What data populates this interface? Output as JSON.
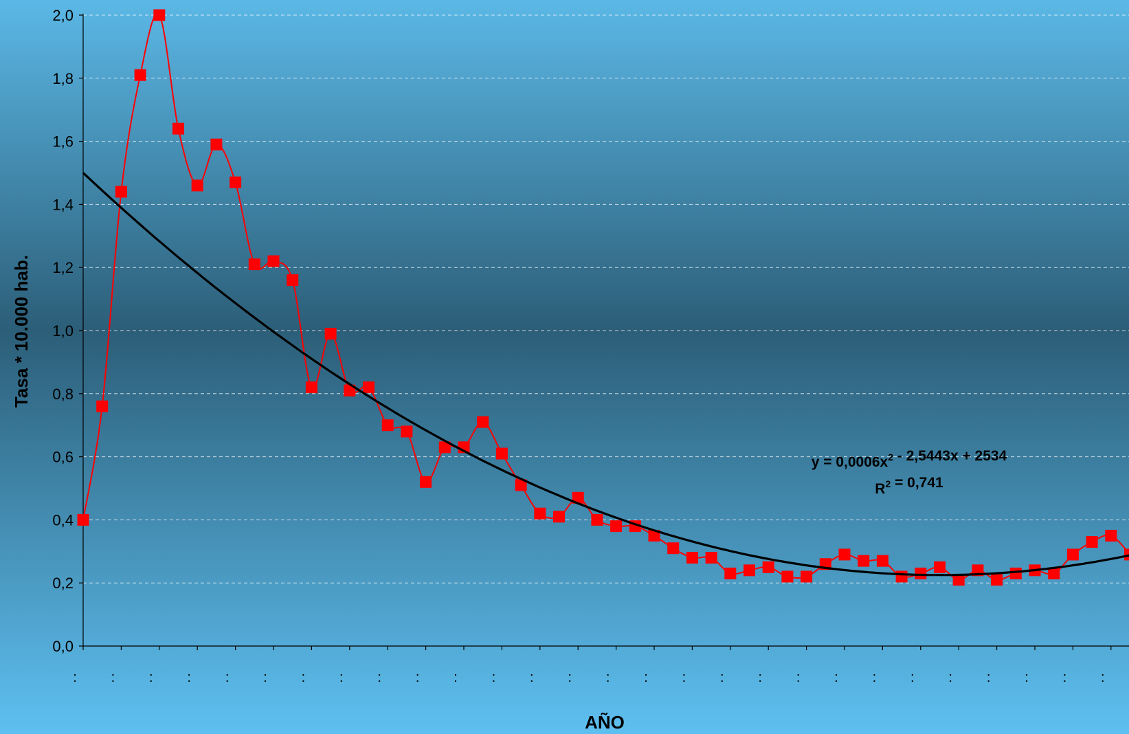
{
  "chart_data": {
    "type": "line",
    "title": "",
    "xlabel": "AÑO",
    "ylabel": "Tasa * 10.000 hab.",
    "ylim": [
      0,
      2.0
    ],
    "y_ticks": [
      "0,0",
      "0,2",
      "0,4",
      "0,6",
      "0,8",
      "1,0",
      "1,2",
      "1,4",
      "1,6",
      "1,8",
      "2,0"
    ],
    "x_tick_labels": [
      ":",
      ":",
      ":",
      ":",
      ":",
      ":",
      ":",
      ":",
      ":",
      ":",
      ":",
      ":",
      ":",
      ":",
      ":",
      ":",
      ":",
      ":",
      ":",
      ":",
      ":",
      ":",
      ":",
      ":",
      ":",
      ":",
      ":",
      ":"
    ],
    "grid": "horizontal dashed",
    "series": [
      {
        "color": "#ff0000",
        "marker": "square",
        "smoothed": true,
        "values": [
          0.4,
          0.76,
          1.44,
          1.81,
          2.0,
          1.64,
          1.46,
          1.59,
          1.47,
          1.21,
          1.22,
          1.16,
          0.82,
          0.99,
          0.81,
          0.82,
          0.7,
          0.68,
          0.52,
          0.63,
          0.63,
          0.71,
          0.61,
          0.51,
          0.42,
          0.41,
          0.47,
          0.4,
          0.38,
          0.38,
          0.35,
          0.31,
          0.28,
          0.28,
          0.23,
          0.24,
          0.25,
          0.22,
          0.22,
          0.26,
          0.29,
          0.27,
          0.27,
          0.22,
          0.23,
          0.25,
          0.21,
          0.24,
          0.21,
          0.23,
          0.24,
          0.23,
          0.29,
          0.33,
          0.35,
          0.29
        ]
      }
    ],
    "trendline": {
      "type": "polynomial",
      "order": 2,
      "color": "#000000",
      "equation": "y = 0,0006x² - 2,5443x + 2534",
      "r_squared": "R² = 0,741",
      "start": 1.56,
      "end": 0.285,
      "vertex_index": 45,
      "vertex_value": 0.225
    },
    "background": {
      "top": "#5bb8e6",
      "middle": "#2c5e78",
      "bottom": "#5ec0f1"
    }
  }
}
